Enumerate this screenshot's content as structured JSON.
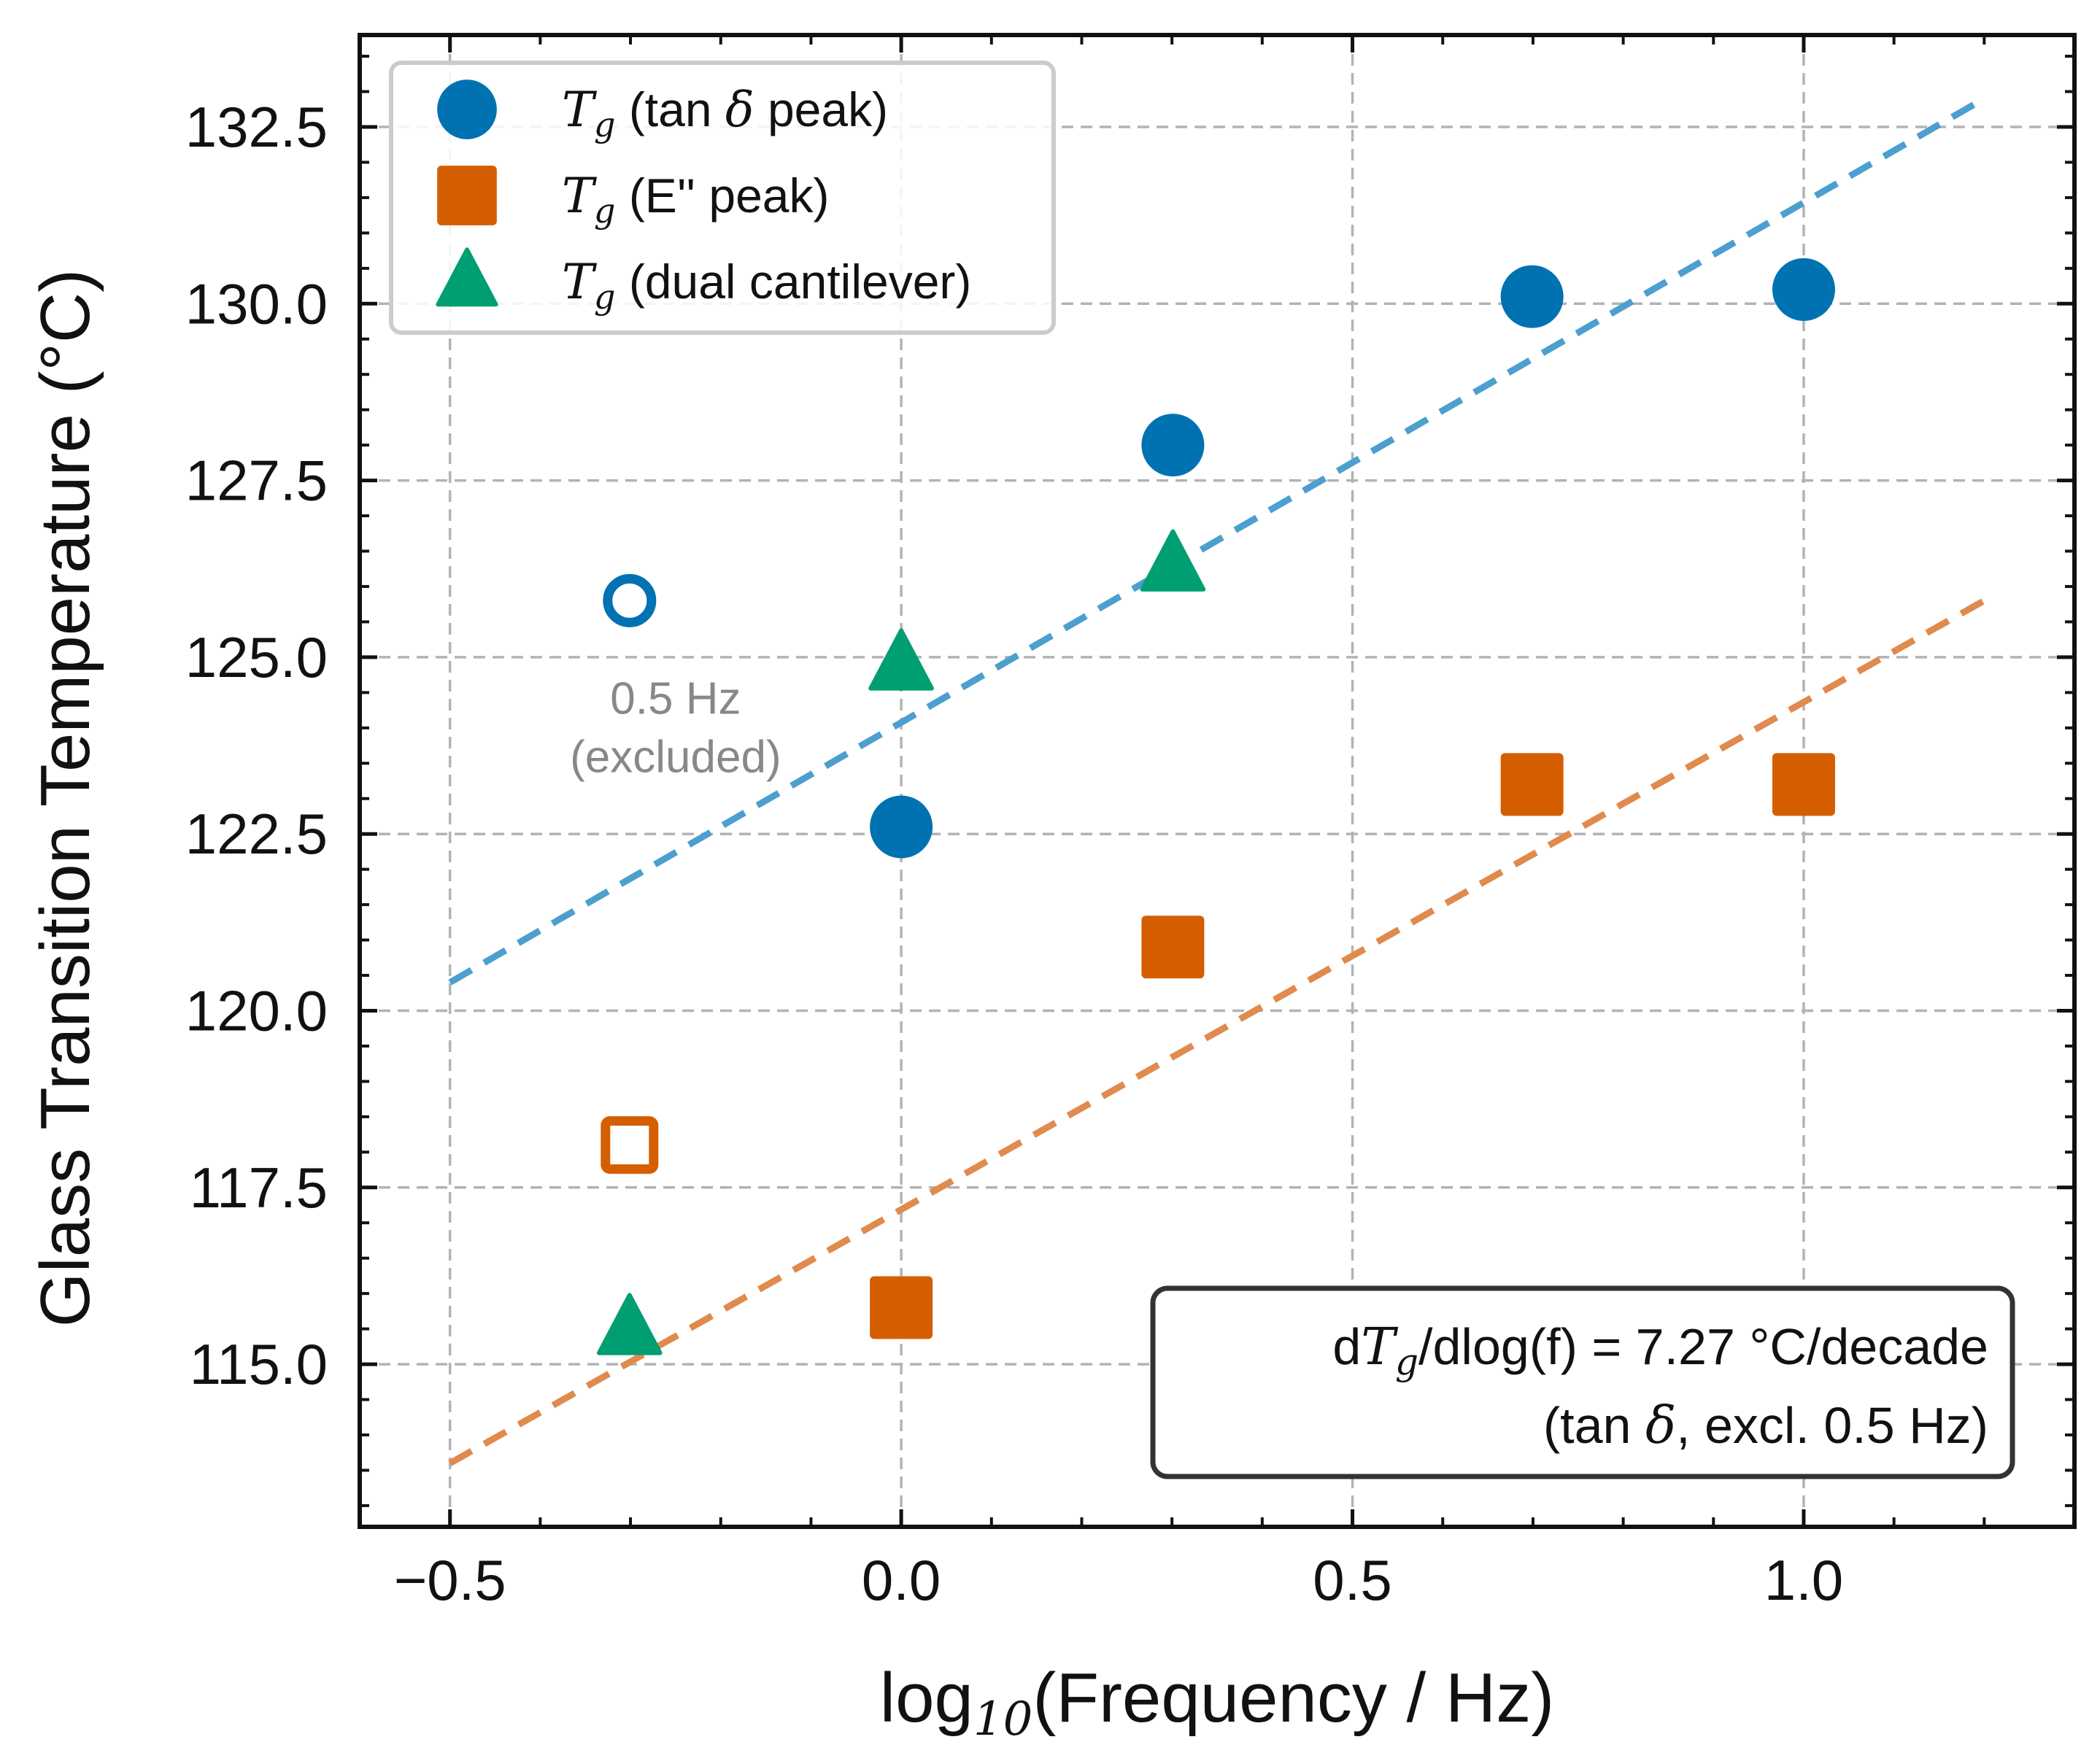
{
  "chart_data": {
    "type": "scatter",
    "xlabel_parts": {
      "prefix": "log",
      "sub": "10",
      "rest": "(Frequency / Hz)"
    },
    "ylabel": "Glass Transition Temperature (°C)",
    "xlim": [
      -0.6,
      1.3
    ],
    "ylim": [
      112.7,
      133.8
    ],
    "x_ticks": [
      -0.5,
      0.0,
      0.5,
      1.0
    ],
    "x_tick_labels": [
      "−0.5",
      "0.0",
      "0.5",
      "1.0"
    ],
    "y_ticks": [
      115.0,
      117.5,
      120.0,
      122.5,
      125.0,
      127.5,
      130.0,
      132.5
    ],
    "y_tick_labels": [
      "115.0",
      "117.5",
      "120.0",
      "122.5",
      "125.0",
      "127.5",
      "130.0",
      "132.5"
    ],
    "grid": true,
    "legend_position": "top-left",
    "series": [
      {
        "name_math": "T",
        "name_sub": "g",
        "name_rest": " (tan ",
        "name_delta": "δ",
        "name_tail": " peak)",
        "marker": "circle",
        "color": "#0072B2",
        "points": [
          {
            "x": 0.0,
            "y": 122.6
          },
          {
            "x": 0.301,
            "y": 128.0
          },
          {
            "x": 0.699,
            "y": 130.1
          },
          {
            "x": 1.0,
            "y": 130.2
          }
        ],
        "excluded_points": [
          {
            "x": -0.301,
            "y": 125.8
          }
        ]
      },
      {
        "name_math": "T",
        "name_sub": "g",
        "name_rest": " (E'' peak)",
        "name_delta": "",
        "name_tail": "",
        "marker": "square",
        "color": "#D55E00",
        "points": [
          {
            "x": 0.0,
            "y": 115.8
          },
          {
            "x": 0.301,
            "y": 120.9
          },
          {
            "x": 0.699,
            "y": 123.2
          },
          {
            "x": 1.0,
            "y": 123.2
          }
        ],
        "excluded_points": [
          {
            "x": -0.301,
            "y": 118.1
          }
        ]
      },
      {
        "name_math": "T",
        "name_sub": "g",
        "name_rest": " (dual cantilever)",
        "name_delta": "",
        "name_tail": "",
        "marker": "triangle",
        "color": "#009E73",
        "points": [
          {
            "x": -0.301,
            "y": 115.5
          },
          {
            "x": 0.0,
            "y": 124.9
          },
          {
            "x": 0.301,
            "y": 126.3
          }
        ],
        "excluded_points": []
      }
    ],
    "fit_lines": [
      {
        "color": "#4C9FCF",
        "x": [
          -0.5,
          1.2
        ],
        "y": [
          120.4,
          132.9
        ]
      },
      {
        "color": "#E08A4E",
        "x": [
          -0.5,
          1.2
        ],
        "y": [
          113.6,
          125.8
        ]
      }
    ],
    "annotations": {
      "excluded_line1": "0.5 Hz",
      "excluded_line2": "(excluded)",
      "excluded_anchor": {
        "x": -0.25,
        "y": 124.2
      }
    },
    "slope_box": {
      "line1_prefix": "d",
      "line1_math": "T",
      "line1_sub": "g",
      "line1_rest": "/dlog(f) = 7.27 °C/decade",
      "line2_prefix": "(tan ",
      "line2_delta": "δ",
      "line2_rest": ", excl. 0.5 Hz)"
    }
  }
}
